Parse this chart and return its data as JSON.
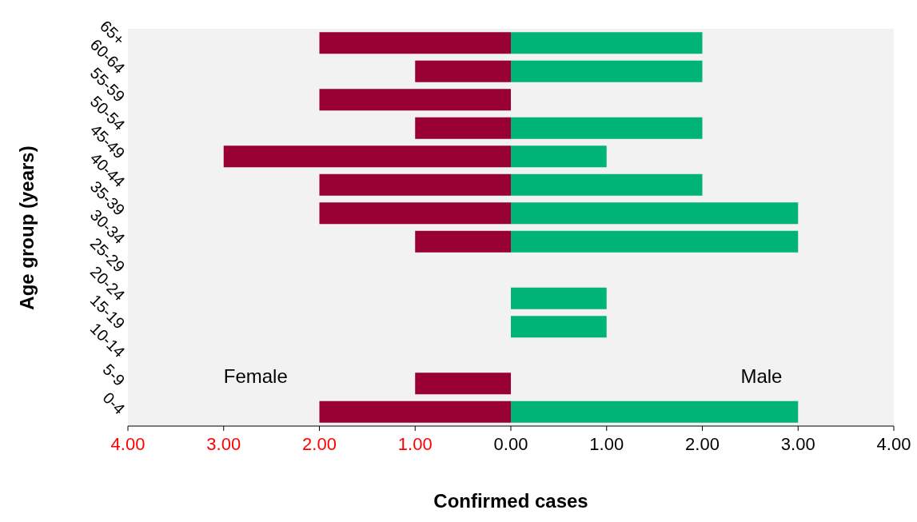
{
  "chart_data": {
    "type": "bar",
    "orientation": "horizontal",
    "stacked": true,
    "xlabel": "Confirmed cases",
    "ylabel": "Age group (years)",
    "categories": [
      "65+",
      "60-64",
      "55-59",
      "50-54",
      "45-49",
      "40-44",
      "35-39",
      "30-34",
      "25-29",
      "20-24",
      "15-19",
      "10-14",
      "5-9",
      "0-4"
    ],
    "series": [
      {
        "name": "Female",
        "color": "#990033",
        "values": [
          -2,
          -1,
          -2,
          -1,
          -3,
          -2,
          -2,
          -1,
          0,
          0,
          0,
          0,
          -1,
          -2
        ]
      },
      {
        "name": "Male",
        "color": "#00b377",
        "values": [
          2,
          2,
          0,
          2,
          1,
          2,
          3,
          3,
          0,
          1,
          1,
          0,
          0,
          3
        ]
      }
    ],
    "xlim": [
      -4,
      4
    ],
    "xticks": [
      {
        "value": -4,
        "label": "4.00"
      },
      {
        "value": -3,
        "label": "3.00"
      },
      {
        "value": -2,
        "label": "2.00"
      },
      {
        "value": -1,
        "label": "1.00"
      },
      {
        "value": 0,
        "label": "0.00"
      },
      {
        "value": 1,
        "label": "1.00"
      },
      {
        "value": 2,
        "label": "2.00"
      },
      {
        "value": 3,
        "label": "3.00"
      },
      {
        "value": 4,
        "label": "4.00"
      }
    ],
    "legend": false
  }
}
